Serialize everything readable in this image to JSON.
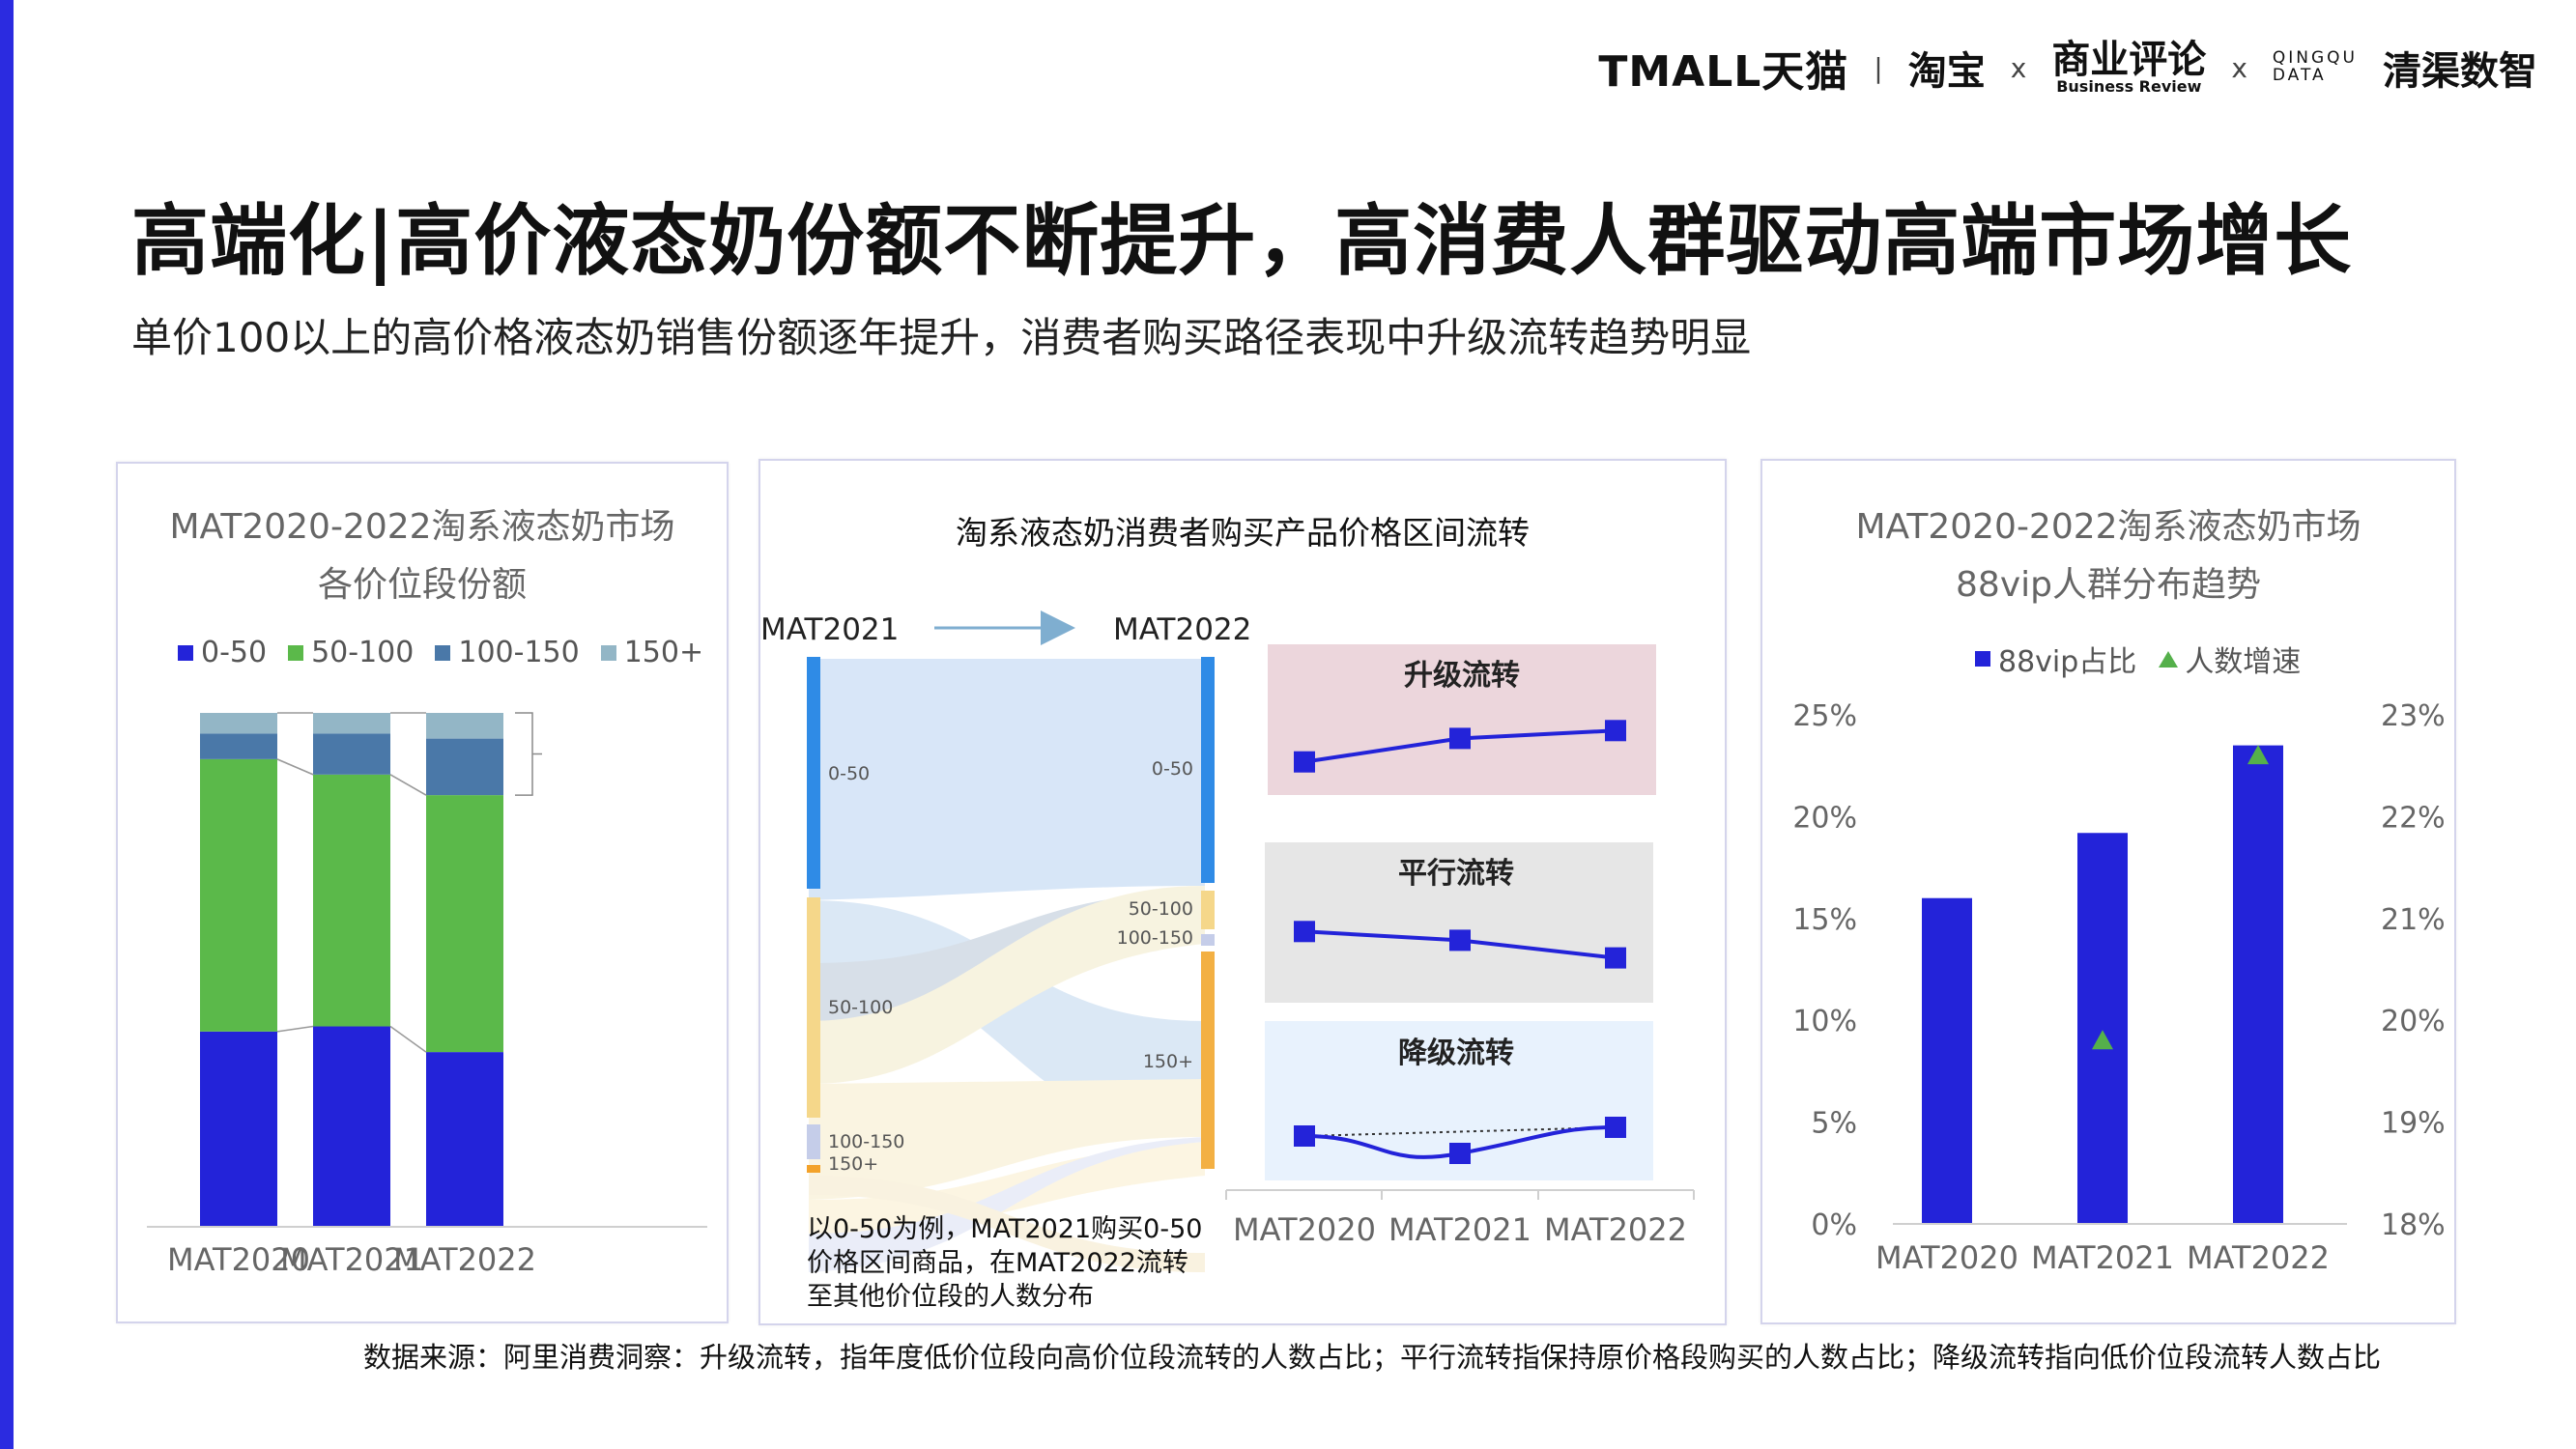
{
  "header": {
    "logos": {
      "tmall": "TMALL天猫",
      "sep": "|",
      "taobao": "淘宝",
      "x1": "x",
      "br_cn": "商业评论",
      "br_en": "Business Review",
      "x2": "x",
      "qingdao_en_1": "QINGQU",
      "qingdao_en_2": "DATA",
      "qingdao_cn": "清渠数智"
    },
    "title": "高端化|高价液态奶份额不断提升，高消费人群驱动高端市场增长",
    "subtitle": "单价100以上的高价格液态奶销售份额逐年提升，消费者购买路径表现中升级流转趋势明显"
  },
  "panel1": {
    "title_line1": "MAT2020-2022淘系液态奶市场",
    "title_line2": "各价位段份额"
  },
  "panel2": {
    "title": "淘系液态奶消费者购买产品价格区间流转",
    "from_label": "MAT2021",
    "to_label": "MAT2022",
    "note": "以0-50为例，MAT2021购买0-50价格区间商品，在MAT2022流转至其他价位段的人数分布",
    "group_titles": [
      "升级流转",
      "平行流转",
      "降级流转"
    ]
  },
  "panel3": {
    "title_line1": "MAT2020-2022淘系液态奶市场",
    "title_line2": "88vip人群分布趋势"
  },
  "footer": "数据来源：阿里消费洞察：升级流转，指年度低价位段向高价位段流转的人数占比；平行流转指保持原价格段购买的人数占比；降级流转指向低价位段流转人数占比",
  "colors": {
    "accent_bar": "#2b2be0",
    "blue": "#2323d9",
    "green": "#5bb94a",
    "steel": "#4a78a8",
    "lightsteel": "#93b6c6",
    "triangle": "#55b04b"
  },
  "chart_data": [
    {
      "type": "bar",
      "stacked": true,
      "percent": true,
      "categories": [
        "MAT2020",
        "MAT2021",
        "MAT2022"
      ],
      "series": [
        {
          "name": "0-50",
          "values": [
            38,
            39,
            34
          ]
        },
        {
          "name": "50-100",
          "values": [
            53,
            49,
            50
          ]
        },
        {
          "name": "100-150",
          "values": [
            5,
            8,
            11
          ]
        },
        {
          "name": "150+",
          "values": [
            4,
            4,
            5
          ]
        }
      ],
      "legend": "top",
      "grid": false
    },
    {
      "type": "sankey",
      "source_label": "MAT2021",
      "target_label": "MAT2022",
      "source_nodes": [
        "0-50",
        "50-100",
        "100-150",
        "150+"
      ],
      "target_nodes": [
        "0-50",
        "50-100",
        "100-150",
        "150+"
      ]
    },
    {
      "type": "line",
      "x": [
        "MAT2020",
        "MAT2021",
        "MAT2022"
      ],
      "axis_labels": [
        "MAT2020",
        "MAT2021",
        "MAT2022"
      ],
      "series": [
        {
          "name": "升级流转",
          "values": [
            0.3,
            0.6,
            0.7
          ]
        },
        {
          "name": "平行流转",
          "values": [
            0.7,
            0.6,
            0.4
          ]
        },
        {
          "name": "降级流转",
          "values": [
            0.4,
            0.2,
            0.5
          ]
        }
      ],
      "grid": false
    },
    {
      "type": "bar",
      "categories": [
        "MAT2020",
        "MAT2021",
        "MAT2022"
      ],
      "series": [
        {
          "name": "88vip占比",
          "values": [
            16,
            19.2,
            23.5
          ],
          "axis": "left"
        },
        {
          "name": "人数增速",
          "values": [
            null,
            19.8,
            22.6
          ],
          "axis": "right",
          "marker": "triangle"
        }
      ],
      "y_left": {
        "ticks": [
          "0%",
          "5%",
          "10%",
          "15%",
          "20%",
          "25%"
        ],
        "ylim": [
          0,
          25
        ]
      },
      "y_right": {
        "ticks": [
          "18%",
          "19%",
          "20%",
          "21%",
          "22%",
          "23%"
        ],
        "ylim": [
          18,
          23
        ]
      },
      "legend": "top",
      "grid": false
    }
  ]
}
